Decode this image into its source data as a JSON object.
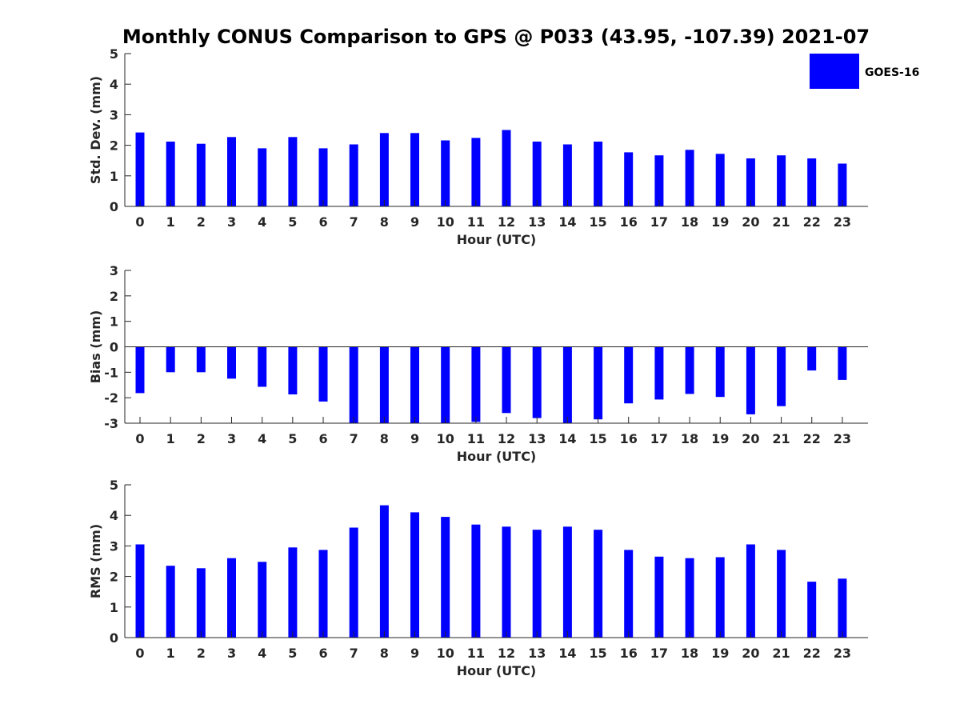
{
  "title": "Monthly CONUS Comparison to GPS @ P033 (43.95, -107.39) 2021-07",
  "legend": {
    "label": "GOES-16",
    "placement": "top-right"
  },
  "colors": {
    "bar": "#0000ff",
    "axis": "#262626",
    "title": "#000000"
  },
  "chart_data": [
    {
      "type": "bar",
      "xlabel": "Hour (UTC)",
      "ylabel": "Std. Dev. (mm)",
      "ylim": [
        0,
        5
      ],
      "yticks": [
        0,
        1,
        2,
        3,
        4,
        5
      ],
      "categories": [
        "0",
        "1",
        "2",
        "3",
        "4",
        "5",
        "6",
        "7",
        "8",
        "9",
        "10",
        "11",
        "12",
        "13",
        "14",
        "15",
        "16",
        "17",
        "18",
        "19",
        "20",
        "21",
        "22",
        "23"
      ],
      "series": [
        {
          "name": "GOES-16",
          "values": [
            2.42,
            2.12,
            2.05,
            2.27,
            1.9,
            2.27,
            1.9,
            2.03,
            2.4,
            2.4,
            2.16,
            2.24,
            2.5,
            2.12,
            2.03,
            2.12,
            1.77,
            1.67,
            1.85,
            1.72,
            1.57,
            1.67,
            1.57,
            1.4
          ]
        }
      ]
    },
    {
      "type": "bar",
      "xlabel": "Hour (UTC)",
      "ylabel": "Bias (mm)",
      "ylim": [
        -3,
        3
      ],
      "yticks": [
        -3,
        -2,
        -1,
        0,
        1,
        2,
        3
      ],
      "categories": [
        "0",
        "1",
        "2",
        "3",
        "4",
        "5",
        "6",
        "7",
        "8",
        "9",
        "10",
        "11",
        "12",
        "13",
        "14",
        "15",
        "16",
        "17",
        "18",
        "19",
        "20",
        "21",
        "22",
        "23"
      ],
      "series": [
        {
          "name": "GOES-16",
          "values": [
            -1.82,
            -1.0,
            -1.0,
            -1.25,
            -1.57,
            -1.87,
            -2.15,
            -3.0,
            -3.0,
            -3.0,
            -3.0,
            -2.95,
            -2.6,
            -2.8,
            -3.0,
            -2.85,
            -2.22,
            -2.07,
            -1.85,
            -1.97,
            -2.65,
            -2.33,
            -0.93,
            -1.3
          ]
        }
      ]
    },
    {
      "type": "bar",
      "xlabel": "Hour (UTC)",
      "ylabel": "RMS (mm)",
      "ylim": [
        0,
        5
      ],
      "yticks": [
        0,
        1,
        2,
        3,
        4,
        5
      ],
      "categories": [
        "0",
        "1",
        "2",
        "3",
        "4",
        "5",
        "6",
        "7",
        "8",
        "9",
        "10",
        "11",
        "12",
        "13",
        "14",
        "15",
        "16",
        "17",
        "18",
        "19",
        "20",
        "21",
        "22",
        "23"
      ],
      "series": [
        {
          "name": "GOES-16",
          "values": [
            3.05,
            2.35,
            2.27,
            2.6,
            2.48,
            2.95,
            2.87,
            3.6,
            4.33,
            4.1,
            3.95,
            3.7,
            3.63,
            3.53,
            3.63,
            3.53,
            2.87,
            2.65,
            2.6,
            2.63,
            3.05,
            2.87,
            1.83,
            1.93
          ]
        }
      ]
    }
  ]
}
